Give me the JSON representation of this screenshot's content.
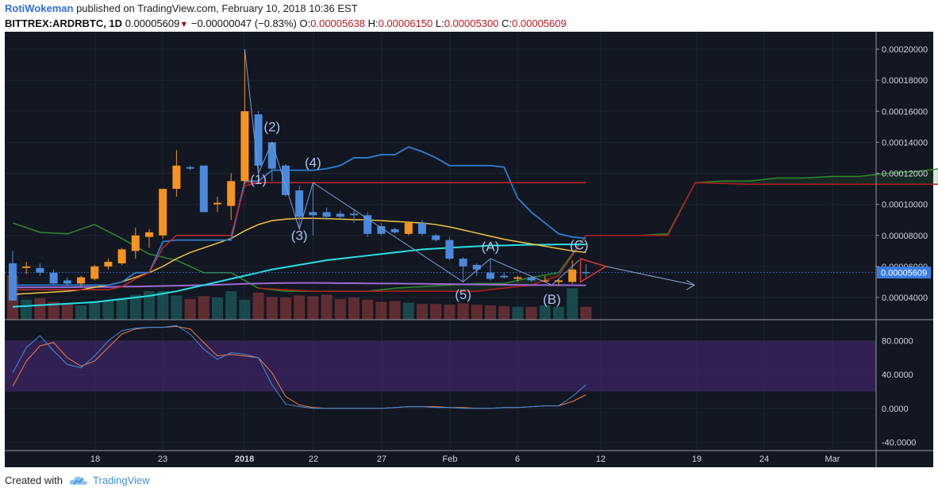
{
  "header": {
    "user": "RotiWokeman",
    "published_text": "published on TradingView.com, February 10, 2018 10:36 EST",
    "symbol": "BITTREX:ARDRBTC, 1D",
    "last": "0.00005609",
    "change": "−0.00000047 (−0.83%)",
    "o_label": "O:",
    "o_value": "0.00005638",
    "h_label": "H:",
    "h_value": "0.00006150",
    "l_label": "L:",
    "l_value": "0.00005300",
    "c_label": "C:",
    "c_value": "0.00005609"
  },
  "footer": {
    "created_with": "Created with",
    "brand": "TradingView",
    "logo_icon": "tradingview-cloud-icon"
  },
  "colors": {
    "background": "#131722",
    "up": "#f7931e",
    "down": "#4a89dc",
    "price_badge": "#3a7be0"
  },
  "chart_data": {
    "type": "candlestick",
    "price_axis": {
      "ylim": [
        2e-05,
        0.00021
      ],
      "ticks": [
        "0.00020000",
        "0.00018000",
        "0.00016000",
        "0.00014000",
        "0.00012000",
        "0.00010000",
        "0.00008000",
        "0.00006000",
        "0.00004000"
      ]
    },
    "last_price_label": "0.00005609",
    "x_ticks": [
      "18",
      "23",
      "2018",
      "22",
      "27",
      "Feb",
      "6",
      "12",
      "19",
      "24",
      "Mar"
    ],
    "candles": [
      {
        "o": 6.2e-05,
        "h": 7e-05,
        "l": 3.8e-05,
        "c": 3.8e-05
      },
      {
        "o": 5.9e-05,
        "h": 6.3e-05,
        "l": 5.5e-05,
        "c": 6e-05
      },
      {
        "o": 5.9e-05,
        "h": 6.2e-05,
        "l": 5.4e-05,
        "c": 5.6e-05
      },
      {
        "o": 5.6e-05,
        "h": 5.8e-05,
        "l": 4.8e-05,
        "c": 4.9e-05
      },
      {
        "o": 5.1e-05,
        "h": 5.3e-05,
        "l": 4.7e-05,
        "c": 4.9e-05
      },
      {
        "o": 4.9e-05,
        "h": 5.4e-05,
        "l": 4.7e-05,
        "c": 5.3e-05
      },
      {
        "o": 5.2e-05,
        "h": 6.1e-05,
        "l": 5.1e-05,
        "c": 6e-05
      },
      {
        "o": 6e-05,
        "h": 6.5e-05,
        "l": 5.8e-05,
        "c": 6.3e-05
      },
      {
        "o": 6.2e-05,
        "h": 7.2e-05,
        "l": 6.1e-05,
        "c": 7.1e-05
      },
      {
        "o": 7e-05,
        "h": 8.5e-05,
        "l": 6.5e-05,
        "c": 8e-05
      },
      {
        "o": 7.9e-05,
        "h": 8.4e-05,
        "l": 7.2e-05,
        "c": 8.2e-05
      },
      {
        "o": 8e-05,
        "h": 0.00011,
        "l": 7.8e-05,
        "c": 0.00011
      },
      {
        "o": 0.00011,
        "h": 0.000135,
        "l": 0.000105,
        "c": 0.000125
      },
      {
        "o": 0.000124,
        "h": 0.000125,
        "l": 0.000122,
        "c": 0.000123
      },
      {
        "o": 0.000125,
        "h": 0.000125,
        "l": 9.5e-05,
        "c": 9.5e-05
      },
      {
        "o": 0.0001,
        "h": 0.000105,
        "l": 9.5e-05,
        "c": 0.000101
      },
      {
        "o": 9.9e-05,
        "h": 0.00012,
        "l": 9e-05,
        "c": 0.000115
      },
      {
        "o": 0.000115,
        "h": 0.0002,
        "l": 0.000113,
        "c": 0.00016
      },
      {
        "o": 0.000158,
        "h": 0.00016,
        "l": 0.000115,
        "c": 0.000125
      },
      {
        "o": 0.00014,
        "h": 0.00014,
        "l": 0.000115,
        "c": 0.000123
      },
      {
        "o": 0.000125,
        "h": 0.000126,
        "l": 0.000105,
        "c": 0.000106
      },
      {
        "o": 0.000109,
        "h": 0.000112,
        "l": 8.5e-05,
        "c": 9.2e-05
      },
      {
        "o": 9.5e-05,
        "h": 0.000114,
        "l": 8e-05,
        "c": 9.3e-05
      },
      {
        "o": 9.5e-05,
        "h": 9.8e-05,
        "l": 9e-05,
        "c": 9.2e-05
      },
      {
        "o": 9.4e-05,
        "h": 9.6e-05,
        "l": 9e-05,
        "c": 9.2e-05
      },
      {
        "o": 9.4e-05,
        "h": 9.7e-05,
        "l": 8.8e-05,
        "c": 9.3e-05
      },
      {
        "o": 9.3e-05,
        "h": 9.5e-05,
        "l": 7.9e-05,
        "c": 8.1e-05
      },
      {
        "o": 8.6e-05,
        "h": 8.8e-05,
        "l": 8e-05,
        "c": 8.1e-05
      },
      {
        "o": 8.4e-05,
        "h": 8.5e-05,
        "l": 8.1e-05,
        "c": 8.2e-05
      },
      {
        "o": 8.1e-05,
        "h": 8.9e-05,
        "l": 8e-05,
        "c": 8.8e-05
      },
      {
        "o": 8.8e-05,
        "h": 9e-05,
        "l": 8e-05,
        "c": 8.1e-05
      },
      {
        "o": 8e-05,
        "h": 8.1e-05,
        "l": 7.6e-05,
        "c": 7.7e-05
      },
      {
        "o": 7.7e-05,
        "h": 7.9e-05,
        "l": 6.4e-05,
        "c": 6.5e-05
      },
      {
        "o": 6.5e-05,
        "h": 6.6e-05,
        "l": 5e-05,
        "c": 6e-05
      },
      {
        "o": 6.1e-05,
        "h": 6.2e-05,
        "l": 5.4e-05,
        "c": 5.8e-05
      },
      {
        "o": 5.6e-05,
        "h": 6.5e-05,
        "l": 5.1e-05,
        "c": 5.2e-05
      },
      {
        "o": 5.4e-05,
        "h": 5.6e-05,
        "l": 5.2e-05,
        "c": 5.3e-05
      },
      {
        "o": 5.2e-05,
        "h": 5.4e-05,
        "l": 5e-05,
        "c": 5.3e-05
      },
      {
        "o": 5.3e-05,
        "h": 5.3e-05,
        "l": 5e-05,
        "c": 5.1e-05
      },
      {
        "o": 5.1e-05,
        "h": 5.4e-05,
        "l": 5e-05,
        "c": 5.1e-05
      },
      {
        "o": 5e-05,
        "h": 5.2e-05,
        "l": 4.8e-05,
        "c": 5.1e-05
      },
      {
        "o": 5e-05,
        "h": 6.4e-05,
        "l": 4.9e-05,
        "c": 5.8e-05
      },
      {
        "o": 5.64e-05,
        "h": 6.15e-05,
        "l": 5.3e-05,
        "c": 5.61e-05
      }
    ],
    "indicators": {
      "ma_yellow": [
        4.2e-05,
        4.25e-05,
        4.3e-05,
        4.35e-05,
        4.4e-05,
        4.5e-05,
        4.65e-05,
        4.8e-05,
        5e-05,
        5.3e-05,
        5.6e-05,
        6e-05,
        6.5e-05,
        6.9e-05,
        7.2e-05,
        7.5e-05,
        7.8e-05,
        8.3e-05,
        8.7e-05,
        8.95e-05,
        9.05e-05,
        9.1e-05,
        9.1e-05,
        9.08e-05,
        9.05e-05,
        9.02e-05,
        9e-05,
        8.95e-05,
        8.9e-05,
        8.85e-05,
        8.8e-05,
        8.7e-05,
        8.55e-05,
        8.35e-05,
        8.15e-05,
        7.95e-05,
        7.75e-05,
        7.6e-05,
        7.45e-05,
        7.3e-05,
        7.15e-05,
        7e-05,
        6.9e-05
      ],
      "ma_cyan": [
        3.4e-05,
        3.45e-05,
        3.5e-05,
        3.55e-05,
        3.6e-05,
        3.65e-05,
        3.7e-05,
        3.8e-05,
        3.9e-05,
        4e-05,
        4.1e-05,
        4.25e-05,
        4.4e-05,
        4.6e-05,
        4.8e-05,
        5e-05,
        5.2e-05,
        5.4e-05,
        5.6e-05,
        5.8e-05,
        5.95e-05,
        6.1e-05,
        6.25e-05,
        6.4e-05,
        6.5e-05,
        6.6e-05,
        6.7e-05,
        6.8e-05,
        6.9e-05,
        7e-05,
        7.1e-05,
        7.15e-05,
        7.2e-05,
        7.25e-05,
        7.3e-05,
        7.35e-05,
        7.35e-05,
        7.38e-05,
        7.4e-05,
        7.4e-05,
        7.42e-05,
        7.42e-05,
        7.42e-05
      ],
      "ma_purple": [
        4.65e-05,
        4.65e-05,
        4.65e-05,
        4.66e-05,
        4.66e-05,
        4.67e-05,
        4.68e-05,
        4.68e-05,
        4.7e-05,
        4.7e-05,
        4.72e-05,
        4.74e-05,
        4.76e-05,
        4.78e-05,
        4.8e-05,
        4.82e-05,
        4.85e-05,
        4.88e-05,
        4.9e-05,
        4.92e-05,
        4.93e-05,
        4.94e-05,
        4.94e-05,
        4.93e-05,
        4.92e-05,
        4.92e-05,
        4.91e-05,
        4.9e-05,
        4.9e-05,
        4.89e-05,
        4.88e-05,
        4.87e-05,
        4.86e-05,
        4.85e-05,
        4.84e-05,
        4.83e-05,
        4.82e-05,
        4.81e-05,
        4.8e-05,
        4.8e-05,
        4.79e-05,
        4.79e-05,
        4.78e-05
      ],
      "kijun_blue": [
        4.8e-05,
        4.8e-05,
        4.8e-05,
        4.8e-05,
        4.8e-05,
        4.8e-05,
        4.8e-05,
        4.8e-05,
        5e-05,
        5.6e-05,
        5.6e-05,
        7.6e-05,
        7.7e-05,
        7.7e-05,
        7.7e-05,
        7.7e-05,
        7.7e-05,
        0.000115,
        0.000115,
        0.000122,
        0.000122,
        0.000122,
        0.000122,
        0.000123,
        0.000125,
        0.00013,
        0.00013,
        0.000132,
        0.000132,
        0.000137,
        0.000134,
        0.00013,
        0.000125,
        0.000125,
        0.000125,
        0.000125,
        0.000124,
        0.000104,
        9.5e-05,
        8.8e-05,
        8.1e-05,
        7.9e-05,
        7.8e-05
      ],
      "tenkan_red": [
        4.5e-05,
        4.5e-05,
        4.5e-05,
        4.5e-05,
        4.5e-05,
        4.5e-05,
        4.5e-05,
        4.5e-05,
        4.7e-05,
        5.2e-05,
        5.6e-05,
        7.2e-05,
        8e-05,
        8e-05,
        8e-05,
        8e-05,
        8e-05,
        0.000112,
        0.000114,
        0.000114,
        0.000114,
        0.000114,
        0.000114,
        0.000114,
        0.000114,
        0.000114,
        0.000114,
        0.000114,
        0.000114,
        0.000114,
        0.000114,
        0.000114,
        0.000114,
        0.000114,
        0.000114,
        0.000114,
        0.000114,
        0.000114,
        0.000114,
        0.000114,
        0.000114,
        0.000114,
        0.000114
      ],
      "cloud_green": [
        [
          0,
          8.8e-05
        ],
        [
          2,
          8.2e-05
        ],
        [
          4,
          8.1e-05
        ],
        [
          6,
          8.7e-05
        ],
        [
          8,
          7.8e-05
        ],
        [
          10,
          6.8e-05
        ],
        [
          12,
          6.4e-05
        ],
        [
          14,
          5.6e-05
        ],
        [
          16,
          5.6e-05
        ],
        [
          18,
          4.6e-05
        ],
        [
          20,
          4.4e-05
        ],
        [
          22,
          4.4e-05
        ],
        [
          24,
          4.4e-05
        ],
        [
          26,
          4.4e-05
        ],
        [
          28,
          4.6e-05
        ],
        [
          30,
          4.7e-05
        ],
        [
          32,
          4.8e-05
        ],
        [
          34,
          4.9e-05
        ],
        [
          36,
          4.9e-05
        ],
        [
          38,
          5.3e-05
        ],
        [
          40,
          5.6e-05
        ],
        [
          42,
          8e-05
        ],
        [
          44,
          8e-05
        ],
        [
          46,
          8e-05
        ],
        [
          48,
          8.1e-05
        ],
        [
          50,
          0.000114
        ],
        [
          52,
          0.000115
        ],
        [
          54,
          0.000115
        ],
        [
          56,
          0.000117
        ],
        [
          58,
          0.000117
        ],
        [
          60,
          0.000118
        ],
        [
          62,
          0.000118
        ],
        [
          64,
          0.00012
        ],
        [
          66,
          0.000121
        ],
        [
          68,
          0.000123
        ],
        [
          70,
          0.000124
        ],
        [
          72,
          0.000126
        ],
        [
          74,
          0.000124
        ],
        [
          76,
          0.00012
        ],
        [
          78,
          0.000119
        ],
        [
          80,
          0.000119
        ],
        [
          82,
          0.000119
        ],
        [
          84,
          0.000118
        ],
        [
          86,
          0.000108
        ]
      ],
      "cloud_red": [
        [
          18,
          4.6e-05
        ],
        [
          22,
          4.4e-05
        ],
        [
          28,
          4.4e-05
        ],
        [
          34,
          4.4e-05
        ],
        [
          38,
          4.8e-05
        ],
        [
          40,
          5.4e-05
        ],
        [
          42,
          8e-05
        ],
        [
          48,
          8e-05
        ],
        [
          50,
          0.000114
        ],
        [
          54,
          0.000113
        ],
        [
          60,
          0.000113
        ],
        [
          70,
          0.000113
        ],
        [
          80,
          0.000113
        ],
        [
          86,
          0.000112
        ]
      ],
      "volume": [
        0.62,
        0.28,
        0.3,
        0.25,
        0.22,
        0.2,
        0.26,
        0.27,
        0.3,
        0.35,
        0.4,
        0.4,
        0.34,
        0.29,
        0.33,
        0.31,
        0.4,
        0.28,
        0.38,
        0.32,
        0.31,
        0.34,
        0.33,
        0.35,
        0.29,
        0.31,
        0.28,
        0.25,
        0.26,
        0.24,
        0.22,
        0.22,
        0.21,
        0.23,
        0.21,
        0.2,
        0.19,
        0.18,
        0.18,
        0.2,
        0.18,
        0.44,
        0.18
      ]
    },
    "elliott": {
      "labels": [
        {
          "text": "(1)",
          "i": 18,
          "price": 0.000113
        },
        {
          "text": "(2)",
          "i": 19,
          "price": 0.000147
        },
        {
          "text": "(3)",
          "i": 21,
          "price": 7.7e-05
        },
        {
          "text": "(4)",
          "i": 22,
          "price": 0.000124
        },
        {
          "text": "(5)",
          "i": 33,
          "price": 3.9e-05
        },
        {
          "text": "(A)",
          "i": 35,
          "price": 7e-05
        },
        {
          "text": "(B)",
          "i": 39.5,
          "price": 3.6e-05
        },
        {
          "text": "(C)",
          "i": 41.5,
          "price": 7.1e-05
        }
      ],
      "path": [
        [
          17,
          0.0002
        ],
        [
          18,
          0.00012
        ],
        [
          19,
          0.00014
        ],
        [
          21,
          8.4e-05
        ],
        [
          22,
          0.000114
        ],
        [
          33,
          5e-05
        ],
        [
          35,
          6.5e-05
        ],
        [
          39.5,
          4.8e-05
        ],
        [
          41.5,
          6.4e-05
        ]
      ]
    },
    "stochastic": {
      "y_ticks": [
        "80.0000",
        "40.0000",
        "0.0000",
        "-40.0000"
      ],
      "band": [
        20,
        80
      ],
      "ylim": [
        -50,
        105
      ],
      "k_blue": [
        [
          0,
          42
        ],
        [
          1,
          72
        ],
        [
          2,
          86
        ],
        [
          3,
          68
        ],
        [
          4,
          52
        ],
        [
          5,
          48
        ],
        [
          6,
          62
        ],
        [
          7,
          80
        ],
        [
          8,
          92
        ],
        [
          9,
          95
        ],
        [
          10,
          96
        ],
        [
          11,
          96
        ],
        [
          12,
          98
        ],
        [
          13,
          88
        ],
        [
          14,
          70
        ],
        [
          15,
          58
        ],
        [
          16,
          66
        ],
        [
          17,
          64
        ],
        [
          18,
          60
        ],
        [
          19,
          28
        ],
        [
          20,
          5
        ],
        [
          21,
          2
        ],
        [
          22,
          0
        ],
        [
          23,
          0
        ],
        [
          24,
          0
        ],
        [
          25,
          0
        ],
        [
          26,
          0
        ],
        [
          27,
          0
        ],
        [
          28,
          1
        ],
        [
          29,
          2
        ],
        [
          30,
          2
        ],
        [
          31,
          1
        ],
        [
          32,
          1
        ],
        [
          33,
          0
        ],
        [
          34,
          0
        ],
        [
          35,
          0
        ],
        [
          36,
          1
        ],
        [
          37,
          1
        ],
        [
          38,
          2
        ],
        [
          39,
          3
        ],
        [
          40,
          3
        ],
        [
          41,
          14
        ],
        [
          42,
          28
        ]
      ],
      "d_orange": [
        [
          0,
          26
        ],
        [
          1,
          56
        ],
        [
          2,
          74
        ],
        [
          3,
          78
        ],
        [
          4,
          60
        ],
        [
          5,
          50
        ],
        [
          6,
          56
        ],
        [
          7,
          72
        ],
        [
          8,
          88
        ],
        [
          9,
          94
        ],
        [
          10,
          96
        ],
        [
          11,
          96
        ],
        [
          12,
          97
        ],
        [
          13,
          94
        ],
        [
          14,
          78
        ],
        [
          15,
          62
        ],
        [
          16,
          64
        ],
        [
          17,
          62
        ],
        [
          18,
          60
        ],
        [
          19,
          42
        ],
        [
          20,
          14
        ],
        [
          21,
          4
        ],
        [
          22,
          1
        ],
        [
          23,
          0
        ],
        [
          24,
          0
        ],
        [
          25,
          0
        ],
        [
          26,
          0
        ],
        [
          27,
          0
        ],
        [
          28,
          1
        ],
        [
          29,
          2
        ],
        [
          30,
          2
        ],
        [
          31,
          2
        ],
        [
          32,
          1
        ],
        [
          33,
          1
        ],
        [
          34,
          0
        ],
        [
          35,
          0
        ],
        [
          36,
          1
        ],
        [
          37,
          1
        ],
        [
          38,
          2
        ],
        [
          39,
          3
        ],
        [
          40,
          3
        ],
        [
          41,
          8
        ],
        [
          42,
          16
        ]
      ]
    }
  }
}
